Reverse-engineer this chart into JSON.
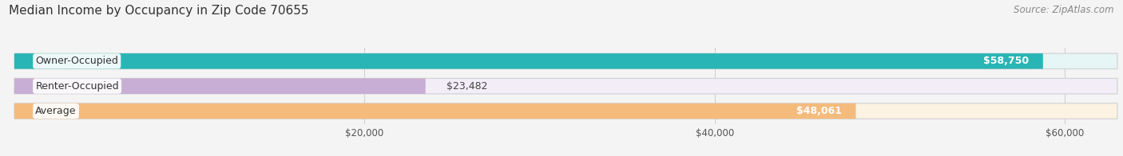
{
  "title": "Median Income by Occupancy in Zip Code 70655",
  "source": "Source: ZipAtlas.com",
  "categories": [
    "Owner-Occupied",
    "Renter-Occupied",
    "Average"
  ],
  "values": [
    58750,
    23482,
    48061
  ],
  "bar_colors": [
    "#29b5b5",
    "#c8aed4",
    "#f5bb7d"
  ],
  "bar_bg_colors": [
    "#e6f5f5",
    "#f2edf7",
    "#fdf3e3"
  ],
  "value_labels": [
    "$58,750",
    "$23,482",
    "$48,061"
  ],
  "xmax": 63000,
  "xticks": [
    20000,
    40000,
    60000
  ],
  "xticklabels": [
    "$20,000",
    "$40,000",
    "$60,000"
  ],
  "background_color": "#f4f4f4",
  "title_fontsize": 11,
  "source_fontsize": 8.5,
  "label_fontsize": 9,
  "value_fontsize": 9
}
